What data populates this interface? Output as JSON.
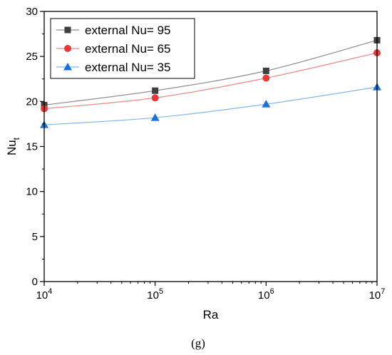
{
  "chart_data": {
    "type": "line",
    "x_scale": "log",
    "x": [
      10000,
      100000,
      1000000,
      10000000
    ],
    "x_ticks": [
      {
        "value": 10000,
        "base": "10",
        "exp": "4"
      },
      {
        "value": 100000,
        "base": "10",
        "exp": "5"
      },
      {
        "value": 1000000,
        "base": "10",
        "exp": "6"
      },
      {
        "value": 10000000,
        "base": "10",
        "exp": "7"
      }
    ],
    "xlim": [
      10000,
      10000000
    ],
    "ylim": [
      0,
      30
    ],
    "y_ticks": [
      "0",
      "5",
      "10",
      "15",
      "20",
      "25",
      "30"
    ],
    "xlabel": "Ra",
    "ylabel_main": "Nu",
    "ylabel_sub": "t",
    "caption": "(g)",
    "legend_placement": "top-left",
    "grid": false,
    "series": [
      {
        "name": "external Nu= 95",
        "marker": "square",
        "color": "#404040",
        "line_color": "#8c8c8c",
        "values": [
          19.6,
          21.2,
          23.4,
          26.8
        ]
      },
      {
        "name": "external Nu= 65",
        "marker": "circle",
        "color": "#e8383a",
        "line_color": "#e98a8a",
        "values": [
          19.2,
          20.4,
          22.6,
          25.4
        ]
      },
      {
        "name": "external Nu= 35",
        "marker": "triangle",
        "color": "#1f6fd8",
        "line_color": "#86b6ea",
        "values": [
          17.4,
          18.2,
          19.7,
          21.6
        ]
      }
    ]
  }
}
